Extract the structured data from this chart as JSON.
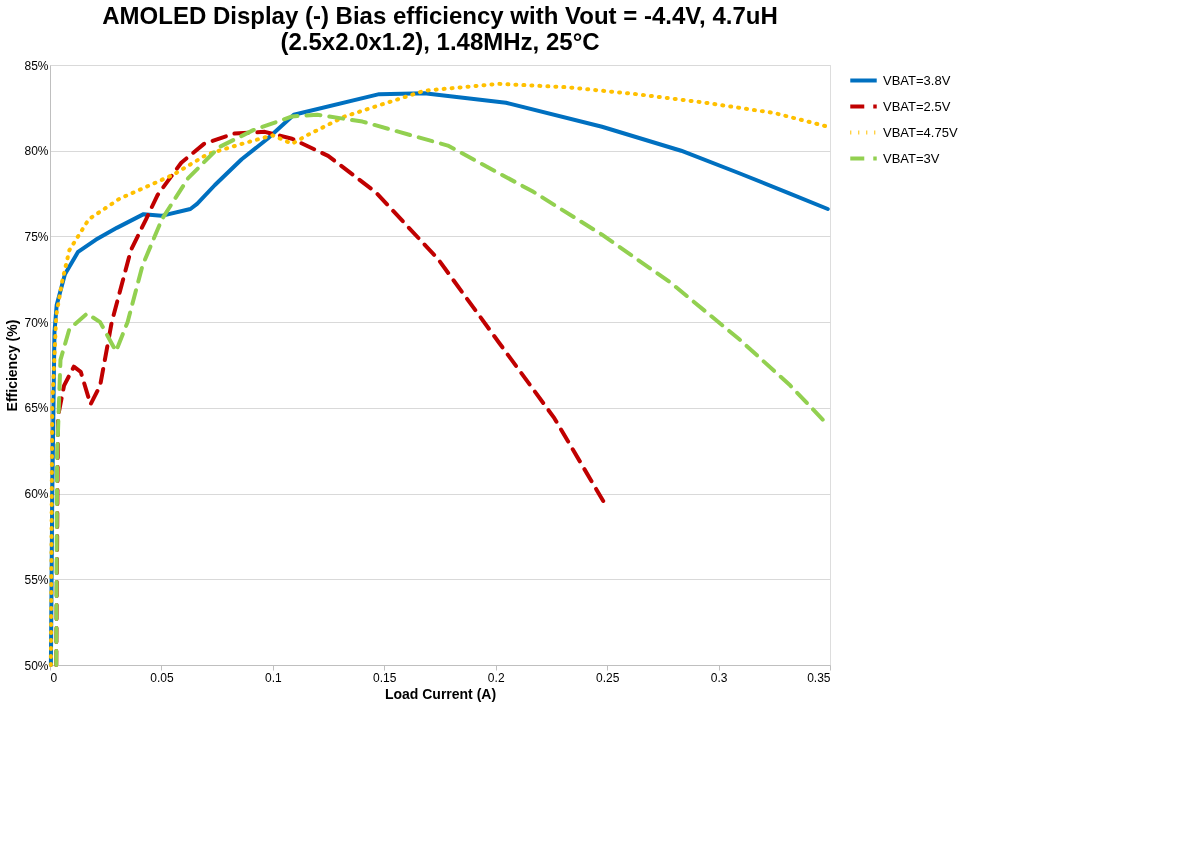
{
  "chart_data": {
    "type": "line",
    "title": "AMOLED Display (-) Bias efficiency with Vout = -4.4V, 4.7uH (2.5x2.0x1.2), 1.48MHz, 25°C",
    "xlabel": "Load Current (A)",
    "ylabel": "Efficiency (%)",
    "xlim": [
      0,
      0.35
    ],
    "xticks": [
      0,
      0.05,
      0.1,
      0.15,
      0.2,
      0.25,
      0.3,
      0.35
    ],
    "ylim": [
      50,
      85
    ],
    "yticks": [
      {
        "value": 50,
        "label": "50%"
      },
      {
        "value": 55,
        "label": "55%"
      },
      {
        "value": 60,
        "label": "60%"
      },
      {
        "value": 65,
        "label": "65%"
      },
      {
        "value": 70,
        "label": "70%"
      },
      {
        "value": 75,
        "label": "75%"
      },
      {
        "value": 80,
        "label": "80%"
      },
      {
        "value": 85,
        "label": "85%"
      }
    ],
    "grid": "y",
    "legend": "right",
    "marker": "none",
    "series": [
      {
        "name": "VBAT=3.8V",
        "color": "#0070c0",
        "line_style": "solid",
        "x": [
          0.0004,
          0.001,
          0.002,
          0.003,
          0.0067,
          0.0126,
          0.0205,
          0.03,
          0.042,
          0.05,
          0.063,
          0.066,
          0.074,
          0.086,
          0.0976,
          0.1094,
          0.1477,
          0.168,
          0.2046,
          0.2477,
          0.2832,
          0.309,
          0.332,
          0.349
        ],
        "values": [
          50,
          59.8,
          69.4,
          71,
          72.8,
          74.1,
          74.8,
          75.5,
          76.3,
          76.2,
          76.6,
          76.9,
          78.0,
          79.5,
          80.7,
          82.1,
          83.3,
          83.35,
          82.8,
          81.4,
          80.0,
          78.7,
          77.5,
          76.6
        ]
      },
      {
        "name": "VBAT=2.5V",
        "color": "#c00000",
        "line_style": "dashed",
        "x": [
          0.0028,
          0.0036,
          0.0063,
          0.0107,
          0.0138,
          0.0182,
          0.0225,
          0.0277,
          0.0363,
          0.0431,
          0.0482,
          0.0589,
          0.0691,
          0.0826,
          0.0964,
          0.1086,
          0.1248,
          0.146,
          0.174,
          0.2015,
          0.2263,
          0.249
        ],
        "values": [
          50,
          64.5,
          66.3,
          67.4,
          67.1,
          65.2,
          66.3,
          70.0,
          74.2,
          76.0,
          77.4,
          79.3,
          80.4,
          81.0,
          81.1,
          80.7,
          79.7,
          77.6,
          73.7,
          68.8,
          64.4,
          59.4
        ]
      },
      {
        "name": "VBAT=4.75V",
        "color": "#ffc000",
        "line_style": "dotted",
        "x": [
          0.0004,
          0.001,
          0.0028,
          0.0055,
          0.0087,
          0.0174,
          0.0312,
          0.045,
          0.0553,
          0.0707,
          0.0861,
          0.0999,
          0.1086,
          0.1153,
          0.1323,
          0.168,
          0.2015,
          0.2323,
          0.263,
          0.294,
          0.325,
          0.349
        ],
        "values": [
          50,
          65.1,
          70.4,
          72.4,
          74.2,
          76.0,
          77.2,
          78.0,
          78.6,
          79.8,
          80.4,
          80.9,
          80.4,
          80.9,
          82.0,
          83.5,
          83.9,
          83.7,
          83.3,
          82.8,
          82.2,
          81.4
        ]
      },
      {
        "name": "VBAT=3V",
        "color": "#92d050",
        "line_style": "dashed",
        "x": [
          0.0028,
          0.0032,
          0.0047,
          0.0087,
          0.0166,
          0.0225,
          0.0296,
          0.0348,
          0.0415,
          0.0502,
          0.062,
          0.0758,
          0.0912,
          0.1086,
          0.12,
          0.1402,
          0.1785,
          0.2169,
          0.2477,
          0.2785,
          0.3093,
          0.3322,
          0.349
        ],
        "values": [
          50,
          62.2,
          67.8,
          69.6,
          70.5,
          70.0,
          68.3,
          70.0,
          73.3,
          76.0,
          78.4,
          80.2,
          81.2,
          82.0,
          82.1,
          81.7,
          80.3,
          77.6,
          75.1,
          72.3,
          69.0,
          66.3,
          64.0
        ]
      }
    ]
  }
}
